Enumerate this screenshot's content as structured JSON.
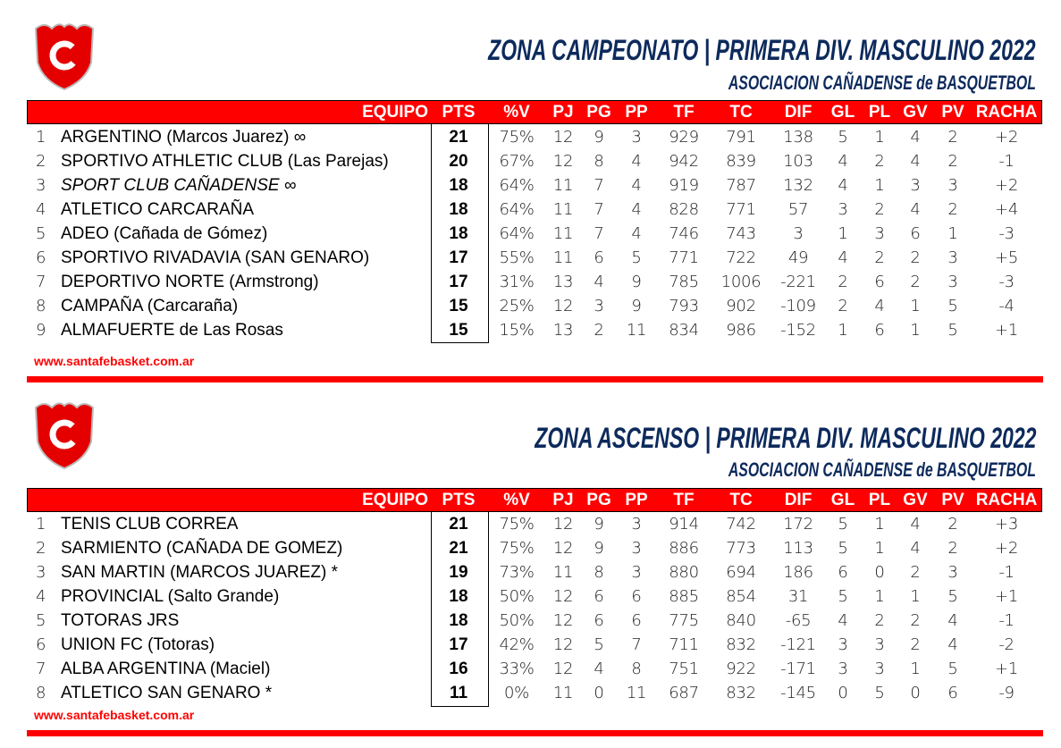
{
  "colors": {
    "accent": "#ff0000",
    "title": "#0d2a5c"
  },
  "logo_letter": "C",
  "columns": [
    "EQUIPO",
    "PTS",
    "%V",
    "PJ",
    "PG",
    "PP",
    "TF",
    "TC",
    "DIF",
    "GL",
    "PL",
    "GV",
    "PV",
    "RACHA"
  ],
  "footer_link": "www.santafebasket.com.ar",
  "sections": [
    {
      "title": "ZONA CAMPEONATO |  PRIMERA DIV. MASCULINO 2022",
      "subtitle": "ASOCIACION CAÑADENSE de BASQUETBOL",
      "rows": [
        [
          "1",
          "ARGENTINO (Marcos Juarez) ∞",
          "21",
          "75%",
          "12",
          "9",
          "3",
          "929",
          "791",
          "138",
          "5",
          "1",
          "4",
          "2",
          "+2"
        ],
        [
          "2",
          "SPORTIVO ATHLETIC CLUB (Las Parejas)",
          "20",
          "67%",
          "12",
          "8",
          "4",
          "942",
          "839",
          "103",
          "4",
          "2",
          "4",
          "2",
          "-1"
        ],
        [
          "3",
          "SPORT CLUB CAÑADENSE ∞",
          "18",
          "64%",
          "11",
          "7",
          "4",
          "919",
          "787",
          "132",
          "4",
          "1",
          "3",
          "3",
          "+2"
        ],
        [
          "4",
          "ATLETICO CARCARAÑA",
          "18",
          "64%",
          "11",
          "7",
          "4",
          "828",
          "771",
          "57",
          "3",
          "2",
          "4",
          "2",
          "+4"
        ],
        [
          "5",
          "ADEO (Cañada de Gómez)",
          "18",
          "64%",
          "11",
          "7",
          "4",
          "746",
          "743",
          "3",
          "1",
          "3",
          "6",
          "1",
          "-3"
        ],
        [
          "6",
          "SPORTIVO RIVADAVIA (SAN GENARO)",
          "17",
          "55%",
          "11",
          "6",
          "5",
          "771",
          "722",
          "49",
          "4",
          "2",
          "2",
          "3",
          "+5"
        ],
        [
          "7",
          "DEPORTIVO NORTE (Armstrong)",
          "17",
          "31%",
          "13",
          "4",
          "9",
          "785",
          "1006",
          "-221",
          "2",
          "6",
          "2",
          "3",
          "-3"
        ],
        [
          "8",
          "CAMPAÑA (Carcaraña)",
          "15",
          "25%",
          "12",
          "3",
          "9",
          "793",
          "902",
          "-109",
          "2",
          "4",
          "1",
          "5",
          "-4"
        ],
        [
          "9",
          "ALMAFUERTE de Las Rosas",
          "15",
          "15%",
          "13",
          "2",
          "11",
          "834",
          "986",
          "-152",
          "1",
          "6",
          "1",
          "5",
          "+1"
        ]
      ]
    },
    {
      "title": "ZONA ASCENSO |  PRIMERA DIV. MASCULINO 2022",
      "subtitle": "ASOCIACION CAÑADENSE de BASQUETBOL",
      "rows": [
        [
          "1",
          "TENIS CLUB CORREA",
          "21",
          "75%",
          "12",
          "9",
          "3",
          "914",
          "742",
          "172",
          "5",
          "1",
          "4",
          "2",
          "+3"
        ],
        [
          "2",
          "SARMIENTO (CAÑADA DE GOMEZ)",
          "21",
          "75%",
          "12",
          "9",
          "3",
          "886",
          "773",
          "113",
          "5",
          "1",
          "4",
          "2",
          "+2"
        ],
        [
          "3",
          "SAN MARTIN (MARCOS JUAREZ) *",
          "19",
          "73%",
          "11",
          "8",
          "3",
          "880",
          "694",
          "186",
          "6",
          "0",
          "2",
          "3",
          "-1"
        ],
        [
          "4",
          "PROVINCIAL (Salto Grande)",
          "18",
          "50%",
          "12",
          "6",
          "6",
          "885",
          "854",
          "31",
          "5",
          "1",
          "1",
          "5",
          "+1"
        ],
        [
          "5",
          "TOTORAS JRS",
          "18",
          "50%",
          "12",
          "6",
          "6",
          "775",
          "840",
          "-65",
          "4",
          "2",
          "2",
          "4",
          "-1"
        ],
        [
          "6",
          "UNION FC (Totoras)",
          "17",
          "42%",
          "12",
          "5",
          "7",
          "711",
          "832",
          "-121",
          "3",
          "3",
          "2",
          "4",
          "-2"
        ],
        [
          "7",
          "ALBA ARGENTINA (Maciel)",
          "16",
          "33%",
          "12",
          "4",
          "8",
          "751",
          "922",
          "-171",
          "3",
          "3",
          "1",
          "5",
          "+1"
        ],
        [
          "8",
          "ATLETICO SAN GENARO *",
          "11",
          "0%",
          "11",
          "0",
          "11",
          "687",
          "832",
          "-145",
          "0",
          "5",
          "0",
          "6",
          "-9"
        ]
      ]
    }
  ]
}
